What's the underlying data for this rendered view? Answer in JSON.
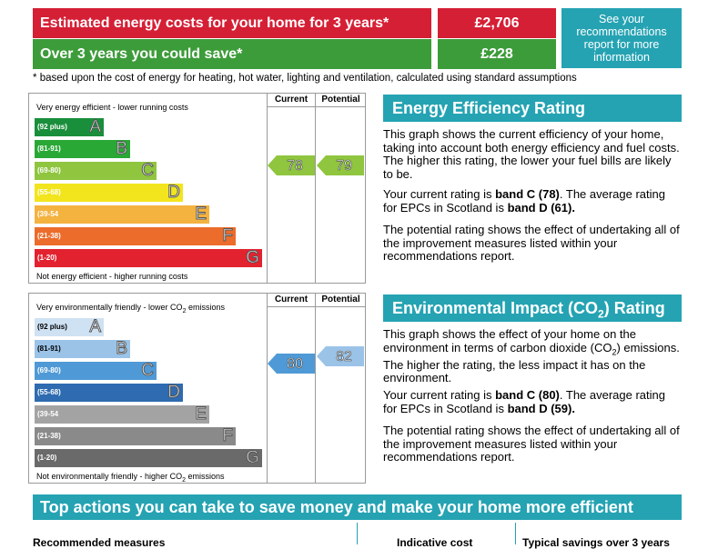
{
  "costs": {
    "row1_label": "Estimated energy costs for your home for 3 years*",
    "row1_value": "£2,706",
    "row2_label": "Over 3 years you could save*",
    "row2_value": "£228",
    "see_box": "See your recommendations report for more information",
    "footnote": "based upon the cost of energy for heating, hot water, lighting and ventilation, calculated using standard assumptions",
    "footnote_mark": "*"
  },
  "energy_graph": {
    "col_current": "Current",
    "col_potential": "Potential",
    "top_note": "Very energy efficient - lower running costs",
    "bottom_note": "Not energy efficient - higher running costs",
    "current": "78",
    "potential": "79",
    "bands": [
      {
        "range": "(92 plus)",
        "letter": "A",
        "color": "#1a8f3b"
      },
      {
        "range": "(81-91)",
        "letter": "B",
        "color": "#2aa836"
      },
      {
        "range": "(69-80)",
        "letter": "C",
        "color": "#8fc53f"
      },
      {
        "range": "(55-68)",
        "letter": "D",
        "color": "#f2e51d"
      },
      {
        "range": "(39-54",
        "letter": "E",
        "color": "#f4b23f"
      },
      {
        "range": "(21-38)",
        "letter": "F",
        "color": "#ec6c2b"
      },
      {
        "range": "(1-20)",
        "letter": "G",
        "color": "#e3222f"
      }
    ]
  },
  "env_graph": {
    "col_current": "Current",
    "col_potential": "Potential",
    "top_note_pre": "Very environmentally friendly - lower CO",
    "top_note_sub": "2",
    "top_note_post": " emissions",
    "bottom_note_pre": "Not environmentally friendly - higher CO",
    "bottom_note_sub": "2",
    "bottom_note_post": " emissions",
    "current": "80",
    "potential": "82",
    "bands": [
      {
        "range": "(92 plus)",
        "letter": "A",
        "color": "#cfe2f3"
      },
      {
        "range": "(81-91)",
        "letter": "B",
        "color": "#9bc3e8"
      },
      {
        "range": "(69-80)",
        "letter": "C",
        "color": "#4f9ad6"
      },
      {
        "range": "(55-68)",
        "letter": "D",
        "color": "#2e6bb0"
      },
      {
        "range": "(39-54",
        "letter": "E",
        "color": "#a3a3a3"
      },
      {
        "range": "(21-38)",
        "letter": "F",
        "color": "#8a8a8a"
      },
      {
        "range": "(1-20)",
        "letter": "G",
        "color": "#6a6a6a"
      }
    ]
  },
  "eer": {
    "heading": "Energy Efficiency Rating",
    "p1": "This graph shows the current efficiency of your home, taking into account both energy efficiency and fuel costs. The higher this rating, the lower your fuel bills are likely to be.",
    "p2_pre": "Your current rating is ",
    "p2_bold1": "band C (78)",
    "p2_mid": ". The average rating for EPCs in Scotland is ",
    "p2_bold2": "band D (61).",
    "p3": "The potential rating shows the effect of undertaking all of the improvement measures listed within your recommendations report."
  },
  "eir": {
    "heading_pre": "Environmental Impact (CO",
    "heading_sub": "2",
    "heading_post": ") Rating",
    "p1_pre": "This graph shows the effect of your home on the environment in terms of carbon dioxide (CO",
    "p1_sub": "2",
    "p1_post": ") emissions. The higher the rating, the less impact it has on the environment.",
    "p2_pre": "Your current rating is ",
    "p2_bold1": "band C (80)",
    "p2_mid": ". The average rating for EPCs in Scotland is ",
    "p2_bold2": "band D (59).",
    "p3": "The potential rating shows the effect of undertaking all of the improvement measures listed within your recommendations report."
  },
  "actions": {
    "heading": "Top actions you can take to save money and make your home more efficient",
    "col1": "Recommended measures",
    "col2": "Indicative cost",
    "col3": "Typical savings over 3 years"
  },
  "colors": {
    "teal": "#25a3b3",
    "red": "#d51f35",
    "green": "#3d9c3a",
    "pointer_energy": "#8fc53f",
    "pointer_env": "#4f9ad6"
  }
}
